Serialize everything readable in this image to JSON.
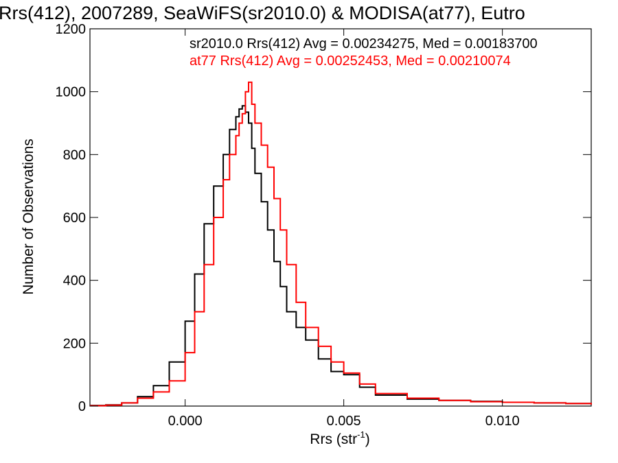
{
  "chart_data": {
    "type": "line",
    "title": "Rrs(412), 2007289, SeaWiFS(sr2010.0) & MODISA(at77), Eutro",
    "xlabel": "Rrs (str",
    "xlabel_sup": "-1",
    "xlabel_end": ")",
    "ylabel": "Number of Observations",
    "xlim": [
      -0.003,
      0.0128
    ],
    "ylim": [
      0,
      1200
    ],
    "x_ticks": [
      0.0,
      0.005,
      0.01
    ],
    "x_tick_labels": [
      "0.000",
      "0.005",
      "0.010"
    ],
    "y_ticks": [
      0,
      200,
      400,
      600,
      800,
      1000,
      1200
    ],
    "y_tick_labels": [
      "0",
      "200",
      "400",
      "600",
      "800",
      "1000",
      "1200"
    ],
    "legend_placement": "top-right",
    "series": [
      {
        "name": "sr2010.0",
        "legend": "sr2010.0 Rrs(412) Avg = 0.00234275, Med = 0.00183700",
        "color": "#000000",
        "x": [
          -0.003,
          -0.0025,
          -0.002,
          -0.0015,
          -0.001,
          -0.0005,
          0.0,
          0.0003,
          0.0006,
          0.0009,
          0.0012,
          0.0014,
          0.0016,
          0.0017,
          0.0018,
          0.0019,
          0.002,
          0.0021,
          0.0022,
          0.0024,
          0.0026,
          0.0028,
          0.003,
          0.0032,
          0.0035,
          0.0038,
          0.0042,
          0.0046,
          0.005,
          0.0055,
          0.006,
          0.007,
          0.008,
          0.009,
          0.01,
          0.011,
          0.012,
          0.0128
        ],
        "values": [
          2,
          4,
          10,
          30,
          65,
          140,
          270,
          420,
          580,
          700,
          800,
          880,
          920,
          945,
          955,
          935,
          900,
          820,
          740,
          650,
          560,
          460,
          380,
          300,
          250,
          210,
          150,
          110,
          100,
          60,
          35,
          22,
          18,
          15,
          12,
          10,
          8,
          5
        ]
      },
      {
        "name": "at77",
        "legend": "at77 Rrs(412) Avg = 0.00252453, Med = 0.00210074",
        "color": "#ff0000",
        "x": [
          -0.003,
          -0.0025,
          -0.002,
          -0.0015,
          -0.001,
          -0.0005,
          0.0,
          0.0003,
          0.0006,
          0.0009,
          0.0012,
          0.0014,
          0.0016,
          0.0017,
          0.0018,
          0.0019,
          0.002,
          0.0021,
          0.0022,
          0.0024,
          0.0026,
          0.0028,
          0.003,
          0.0032,
          0.0035,
          0.0038,
          0.0042,
          0.0046,
          0.005,
          0.0055,
          0.006,
          0.007,
          0.008,
          0.009,
          0.01,
          0.011,
          0.012,
          0.0128
        ],
        "values": [
          1,
          3,
          10,
          25,
          45,
          80,
          170,
          300,
          450,
          600,
          720,
          800,
          860,
          900,
          930,
          1000,
          1030,
          960,
          900,
          830,
          760,
          660,
          560,
          450,
          330,
          250,
          190,
          140,
          105,
          70,
          40,
          25,
          18,
          14,
          12,
          10,
          8,
          5
        ]
      }
    ]
  }
}
